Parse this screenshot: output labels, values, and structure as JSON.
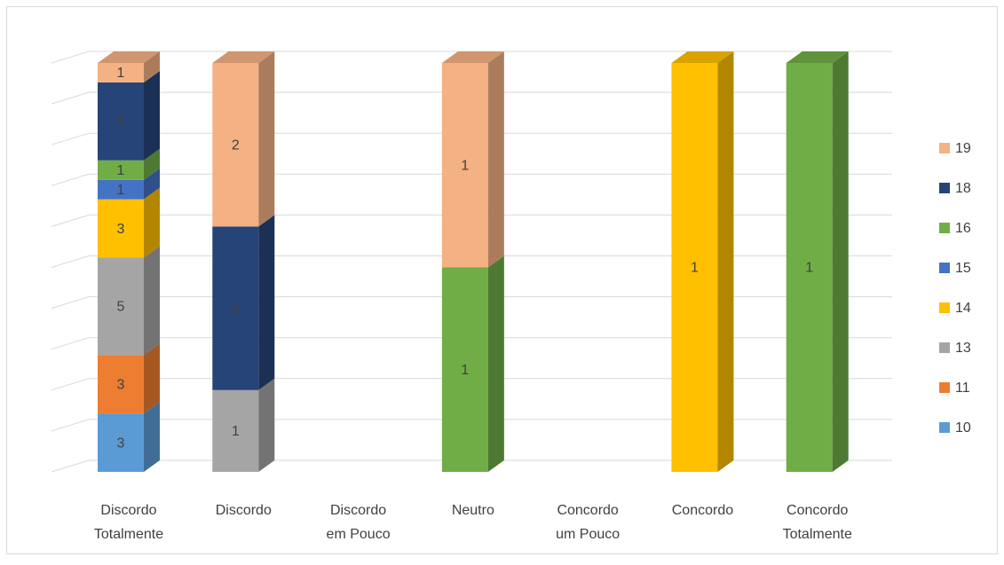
{
  "chart_data": {
    "type": "bar3d",
    "stacking": "percent",
    "categories": [
      "Discordo Totalmente",
      "Discordo",
      "Discordo em Pouco",
      "Neutro",
      "Concordo um Pouco",
      "Concordo",
      "Concordo Totalmente"
    ],
    "series": [
      {
        "name": "10",
        "color": "#5b9bd5",
        "values": [
          3,
          null,
          null,
          null,
          null,
          null,
          null
        ]
      },
      {
        "name": "11",
        "color": "#ed7d31",
        "values": [
          3,
          null,
          null,
          null,
          null,
          null,
          null
        ]
      },
      {
        "name": "13",
        "color": "#a5a5a5",
        "values": [
          5,
          1,
          null,
          null,
          null,
          null,
          null
        ]
      },
      {
        "name": "14",
        "color": "#ffc000",
        "values": [
          3,
          null,
          null,
          null,
          null,
          1,
          null
        ]
      },
      {
        "name": "15",
        "color": "#4472c4",
        "values": [
          1,
          null,
          null,
          null,
          null,
          null,
          null
        ]
      },
      {
        "name": "16",
        "color": "#70ad47",
        "values": [
          1,
          null,
          null,
          1,
          null,
          null,
          1
        ]
      },
      {
        "name": "18",
        "color": "#264478",
        "values": [
          4,
          2,
          null,
          null,
          null,
          null,
          null
        ]
      },
      {
        "name": "19",
        "color": "#f4b183",
        "values": [
          1,
          2,
          null,
          1,
          null,
          null,
          null
        ]
      }
    ],
    "ylim": [
      0,
      100
    ],
    "yticks": [
      0,
      10,
      20,
      30,
      40,
      50,
      60,
      70,
      80,
      90,
      100
    ],
    "grid": true,
    "legend": "right"
  }
}
